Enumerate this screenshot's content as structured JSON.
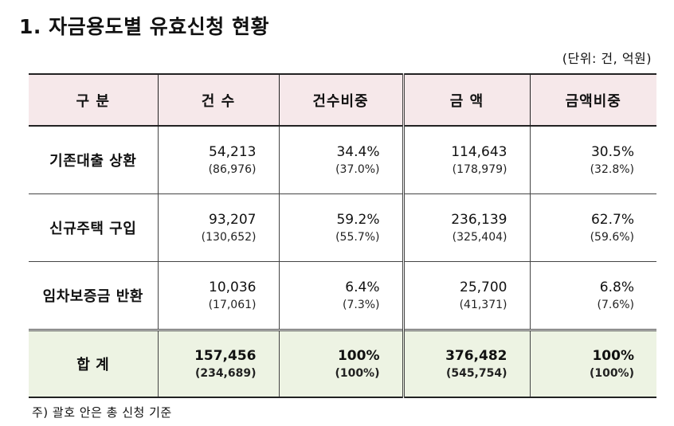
{
  "title": "1. 자금용도별 유효신청 현황",
  "unit": "(단위: 건, 억원)",
  "headers": [
    "구 분",
    "건 수",
    "건수비중",
    "금 액",
    "금액비중"
  ],
  "rows": [
    {
      "label": "기존대출 상환",
      "count": "54,213",
      "count_total": "(86,976)",
      "count_share": "34.4%",
      "count_share_total": "(37.0%)",
      "amount": "114,643",
      "amount_total": "(178,979)",
      "amount_share": "30.5%",
      "amount_share_total": "(32.8%)"
    },
    {
      "label": "신규주택 구입",
      "count": "93,207",
      "count_total": "(130,652)",
      "count_share": "59.2%",
      "count_share_total": "(55.7%)",
      "amount": "236,139",
      "amount_total": "(325,404)",
      "amount_share": "62.7%",
      "amount_share_total": "(59.6%)"
    },
    {
      "label": "임차보증금 반환",
      "count": "10,036",
      "count_total": "(17,061)",
      "count_share": "6.4%",
      "count_share_total": "(7.3%)",
      "amount": "25,700",
      "amount_total": "(41,371)",
      "amount_share": "6.8%",
      "amount_share_total": "(7.6%)"
    }
  ],
  "total": {
    "label": "합 계",
    "count": "157,456",
    "count_total": "(234,689)",
    "count_share": "100%",
    "count_share_total": "(100%)",
    "amount": "376,482",
    "amount_total": "(545,754)",
    "amount_share": "100%",
    "amount_share_total": "(100%)"
  },
  "note": "주) 괄호 안은 총 신청 기준",
  "colors": {
    "header_bg": "#f6e8ea",
    "total_bg": "#edf3e3"
  }
}
